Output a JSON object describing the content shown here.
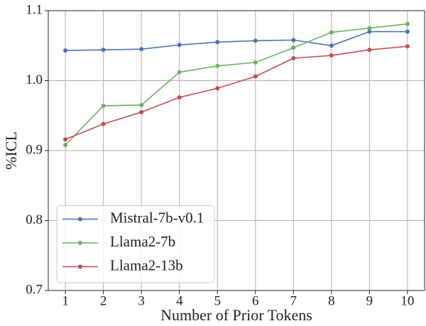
{
  "chart_data": {
    "type": "line",
    "x_label": "Number of Prior Tokens",
    "y_label": "%ICL",
    "x": [
      1,
      2,
      3,
      4,
      5,
      6,
      7,
      8,
      9,
      10
    ],
    "series": [
      {
        "name": "Mistral-7b-v0.1",
        "color": "#4c72b0",
        "values": [
          1.043,
          1.044,
          1.045,
          1.051,
          1.055,
          1.057,
          1.058,
          1.05,
          1.07,
          1.07
        ]
      },
      {
        "name": "Llama2-7b",
        "color": "#6ab25c",
        "values": [
          0.908,
          0.964,
          0.965,
          1.012,
          1.021,
          1.026,
          1.047,
          1.069,
          1.075,
          1.081
        ]
      },
      {
        "name": "Llama2-13b",
        "color": "#c44e52",
        "values": [
          0.916,
          0.938,
          0.955,
          0.976,
          0.989,
          1.006,
          1.032,
          1.036,
          1.044,
          1.049
        ]
      }
    ],
    "xlim": [
      0.55,
      10.45
    ],
    "xticks": [
      1,
      2,
      3,
      4,
      5,
      6,
      7,
      8,
      9,
      10
    ],
    "ylim": [
      0.7,
      1.1
    ],
    "yticks": [
      0.7,
      0.8,
      0.9,
      {
        "value": 1,
        "label": "1.0"
      },
      1.1
    ],
    "grid": true,
    "legend": "lower left"
  }
}
